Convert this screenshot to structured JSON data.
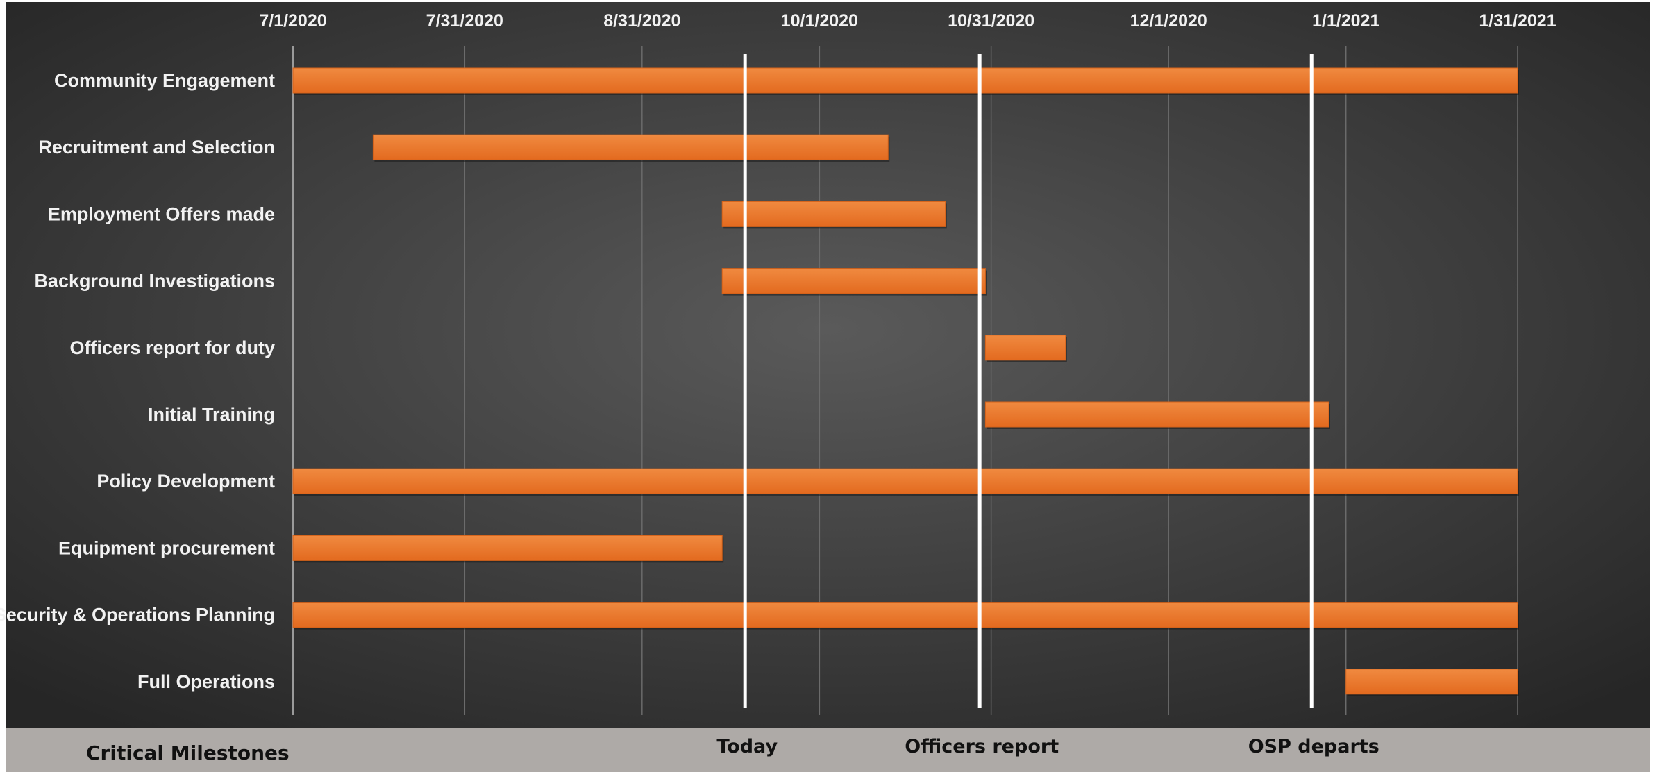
{
  "chart_data": {
    "type": "gantt",
    "x_axis": {
      "ticks": [
        "7/1/2020",
        "7/31/2020",
        "8/31/2020",
        "10/1/2020",
        "10/31/2020",
        "12/1/2020",
        "1/1/2021",
        "1/31/2021"
      ],
      "range": [
        "2020-07-01",
        "2021-01-31"
      ],
      "gridlines": true,
      "position": "top"
    },
    "tasks": [
      {
        "name": "Community Engagement",
        "start": "2020-07-01",
        "end": "2021-01-31"
      },
      {
        "name": "Recruitment and Selection",
        "start": "2020-07-15",
        "end": "2020-10-13"
      },
      {
        "name": "Employment Offers made",
        "start": "2020-09-14",
        "end": "2020-10-23"
      },
      {
        "name": "Background Investigations",
        "start": "2020-09-14",
        "end": "2020-10-30"
      },
      {
        "name": "Officers report for duty",
        "start": "2020-10-30",
        "end": "2020-11-13"
      },
      {
        "name": "Initial Training",
        "start": "2020-10-30",
        "end": "2020-12-29"
      },
      {
        "name": "Policy Development",
        "start": "2020-07-01",
        "end": "2021-01-31"
      },
      {
        "name": "Equipment procurement",
        "start": "2020-07-01",
        "end": "2020-09-14"
      },
      {
        "name": "Security & Operations Planning",
        "start": "2020-07-01",
        "end": "2021-01-31"
      },
      {
        "name": "Full Operations",
        "start": "2021-01-01",
        "end": "2021-01-31"
      }
    ],
    "milestones": [
      {
        "label": "Today",
        "date": "2020-09-18"
      },
      {
        "label": "Officers report",
        "date": "2020-10-29"
      },
      {
        "label": "OSP departs",
        "date": "2020-12-26"
      }
    ],
    "footer_title": "Critical Milestones",
    "colors": {
      "bar": "#f07b2c",
      "bar_dark": "#d4621a",
      "background_center": "#5a5a5a",
      "background_edge": "#262626",
      "milestone_line": "#ffffff",
      "footer_band": "#aeaaa7",
      "grid": "#6b6b6b"
    }
  }
}
